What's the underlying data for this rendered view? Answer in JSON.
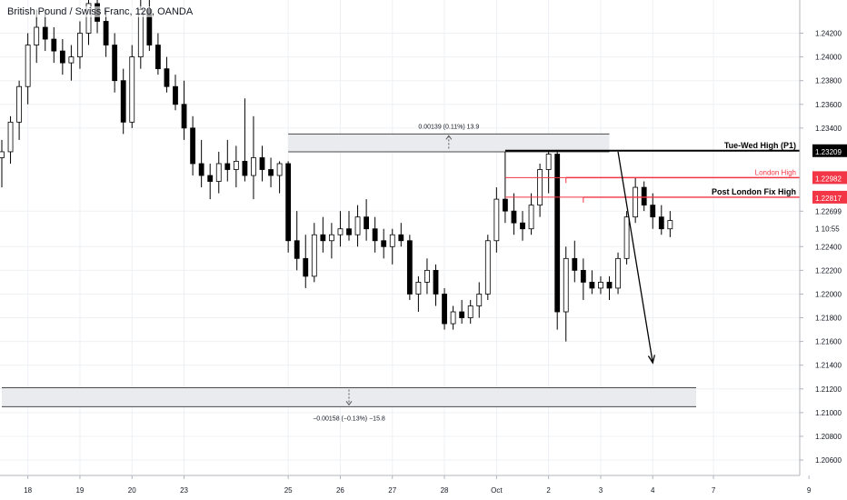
{
  "chart_title": "British Pound / Swiss Franc, 120, OANDA",
  "chart_data": {
    "type": "candlestick",
    "title": "British Pound / Swiss Franc, 120, OANDA",
    "ylim": [
      1.2047,
      1.2448
    ],
    "grid": true,
    "x_ticks": [
      {
        "label": "18",
        "idx": 3
      },
      {
        "label": "19",
        "idx": 9
      },
      {
        "label": "20",
        "idx": 15
      },
      {
        "label": "23",
        "idx": 21
      },
      {
        "label": "25",
        "idx": 33
      },
      {
        "label": "26",
        "idx": 39
      },
      {
        "label": "27",
        "idx": 45
      },
      {
        "label": "28",
        "idx": 51
      },
      {
        "label": "Oct",
        "idx": 57
      },
      {
        "label": "2",
        "idx": 63
      },
      {
        "label": "3",
        "idx": 69
      },
      {
        "label": "4",
        "idx": 75
      },
      {
        "label": "7",
        "idx": 82
      },
      {
        "label": "9",
        "idx": 93
      }
    ],
    "y_ticks": [
      "1.24200",
      "1.24000",
      "1.23800",
      "1.23600",
      "1.23400",
      "1.22699",
      "1.22400",
      "1.22200",
      "1.22000",
      "1.21800",
      "1.21600",
      "1.21400",
      "1.21200",
      "1.21000",
      "1.20800",
      "1.20600"
    ],
    "y_tick_values": [
      1.242,
      1.24,
      1.238,
      1.236,
      1.234,
      1.22699,
      1.224,
      1.222,
      1.22,
      1.218,
      1.216,
      1.214,
      1.212,
      1.21,
      1.208,
      1.206
    ],
    "candles": [
      [
        1.2315,
        1.233,
        1.229,
        1.232
      ],
      [
        1.232,
        1.235,
        1.231,
        1.2345
      ],
      [
        1.2345,
        1.238,
        1.233,
        1.2375
      ],
      [
        1.2375,
        1.242,
        1.236,
        1.241
      ],
      [
        1.241,
        1.244,
        1.2395,
        1.2425
      ],
      [
        1.2425,
        1.244,
        1.2405,
        1.2415
      ],
      [
        1.2415,
        1.2425,
        1.2395,
        1.2405
      ],
      [
        1.2405,
        1.2415,
        1.2385,
        1.2395
      ],
      [
        1.2395,
        1.241,
        1.238,
        1.24
      ],
      [
        1.24,
        1.243,
        1.239,
        1.242
      ],
      [
        1.242,
        1.245,
        1.241,
        1.2445
      ],
      [
        1.2445,
        1.245,
        1.242,
        1.243
      ],
      [
        1.243,
        1.244,
        1.24,
        1.241
      ],
      [
        1.241,
        1.242,
        1.237,
        1.238
      ],
      [
        1.238,
        1.239,
        1.2335,
        1.2345
      ],
      [
        1.2345,
        1.241,
        1.234,
        1.24
      ],
      [
        1.24,
        1.245,
        1.239,
        1.244
      ],
      [
        1.244,
        1.245,
        1.2405,
        1.241
      ],
      [
        1.241,
        1.242,
        1.2385,
        1.239
      ],
      [
        1.239,
        1.24,
        1.237,
        1.2375
      ],
      [
        1.2375,
        1.2385,
        1.2355,
        1.236
      ],
      [
        1.236,
        1.238,
        1.233,
        1.234
      ],
      [
        1.234,
        1.235,
        1.23,
        1.231
      ],
      [
        1.231,
        1.233,
        1.229,
        1.23
      ],
      [
        1.23,
        1.231,
        1.228,
        1.2295
      ],
      [
        1.2295,
        1.232,
        1.2285,
        1.231
      ],
      [
        1.231,
        1.233,
        1.2295,
        1.2305
      ],
      [
        1.2305,
        1.2325,
        1.229,
        1.2312
      ],
      [
        1.2312,
        1.2365,
        1.2295,
        1.23
      ],
      [
        1.23,
        1.235,
        1.228,
        1.2315
      ],
      [
        1.2315,
        1.2325,
        1.2295,
        1.2305
      ],
      [
        1.2305,
        1.2315,
        1.229,
        1.23
      ],
      [
        1.23,
        1.2312,
        1.2285,
        1.231
      ],
      [
        1.231,
        1.2312,
        1.2235,
        1.2245
      ],
      [
        1.2245,
        1.227,
        1.222,
        1.223
      ],
      [
        1.223,
        1.225,
        1.2205,
        1.2215
      ],
      [
        1.2215,
        1.226,
        1.221,
        1.225
      ],
      [
        1.225,
        1.2265,
        1.2235,
        1.2245
      ],
      [
        1.2245,
        1.226,
        1.223,
        1.225
      ],
      [
        1.225,
        1.227,
        1.224,
        1.2255
      ],
      [
        1.2255,
        1.227,
        1.2245,
        1.225
      ],
      [
        1.225,
        1.2275,
        1.224,
        1.2265
      ],
      [
        1.2265,
        1.228,
        1.2245,
        1.2255
      ],
      [
        1.2255,
        1.2265,
        1.2235,
        1.2245
      ],
      [
        1.2245,
        1.2255,
        1.223,
        1.224
      ],
      [
        1.224,
        1.2255,
        1.2225,
        1.225
      ],
      [
        1.225,
        1.226,
        1.224,
        1.2245
      ],
      [
        1.2245,
        1.225,
        1.2195,
        1.22
      ],
      [
        1.22,
        1.2215,
        1.2185,
        1.221
      ],
      [
        1.221,
        1.223,
        1.22,
        1.222
      ],
      [
        1.222,
        1.2225,
        1.219,
        1.22
      ],
      [
        1.22,
        1.2205,
        1.217,
        1.2175
      ],
      [
        1.2175,
        1.219,
        1.217,
        1.2185
      ],
      [
        1.2185,
        1.2195,
        1.2175,
        1.218
      ],
      [
        1.218,
        1.2195,
        1.2175,
        1.219
      ],
      [
        1.219,
        1.221,
        1.218,
        1.22
      ],
      [
        1.22,
        1.225,
        1.2195,
        1.2245
      ],
      [
        1.2245,
        1.229,
        1.2235,
        1.228
      ],
      [
        1.228,
        1.232,
        1.226,
        1.227
      ],
      [
        1.227,
        1.2285,
        1.225,
        1.226
      ],
      [
        1.226,
        1.227,
        1.2245,
        1.2255
      ],
      [
        1.2255,
        1.2285,
        1.225,
        1.2275
      ],
      [
        1.2275,
        1.231,
        1.2265,
        1.2305
      ],
      [
        1.2305,
        1.2321,
        1.2285,
        1.2318
      ],
      [
        1.2318,
        1.2321,
        1.217,
        1.2185
      ],
      [
        1.2185,
        1.224,
        1.216,
        1.223
      ],
      [
        1.223,
        1.2245,
        1.221,
        1.222
      ],
      [
        1.222,
        1.223,
        1.2195,
        1.221
      ],
      [
        1.221,
        1.222,
        1.22,
        1.2205
      ],
      [
        1.2205,
        1.2215,
        1.22,
        1.221
      ],
      [
        1.221,
        1.2215,
        1.2195,
        1.2205
      ],
      [
        1.2205,
        1.2235,
        1.22,
        1.223
      ],
      [
        1.223,
        1.227,
        1.2225,
        1.2265
      ],
      [
        1.2265,
        1.2298,
        1.226,
        1.229
      ],
      [
        1.229,
        1.2295,
        1.227,
        1.2275
      ],
      [
        1.2275,
        1.2285,
        1.2255,
        1.2265
      ],
      [
        1.2265,
        1.2275,
        1.225,
        1.2255
      ],
      [
        1.2255,
        1.227,
        1.2248,
        1.2262
      ]
    ],
    "horizontal_levels": [
      {
        "name": "Tue-Wed High (P1)",
        "value": 1.23209,
        "color": "#000000",
        "label_box": "1.23209"
      },
      {
        "name": "London High",
        "value": 1.22982,
        "color": "#f23645",
        "label_box": "1.22982"
      },
      {
        "name": "Post London Fix High",
        "value": 1.22817,
        "color": "#f23645",
        "label_box": "1.22817"
      }
    ],
    "zones": [
      {
        "from_idx": 33,
        "to_idx": 70,
        "low": 1.232,
        "high": 1.2335,
        "label": "0.00139 (0.11%) 13.9"
      },
      {
        "from_idx": 0,
        "to_idx": 80,
        "low": 1.2105,
        "high": 1.2121,
        "label": "−0.00158 (−0.13%) −15.8"
      }
    ],
    "current_price": {
      "label": "1 10:55",
      "value": 1.2255
    },
    "projection_arrow": {
      "from_idx": 71,
      "from_value": 1.232,
      "to_idx": 75,
      "to_value": 1.2142
    }
  },
  "colors": {
    "up": "#ffffff",
    "down": "#000000",
    "wick": "#000000",
    "grid": "#eef0f4",
    "axis_text": "#131722",
    "red_level": "#f23645",
    "zone_fill": "#e9ebef",
    "zone_border": "#4a4a4a"
  }
}
